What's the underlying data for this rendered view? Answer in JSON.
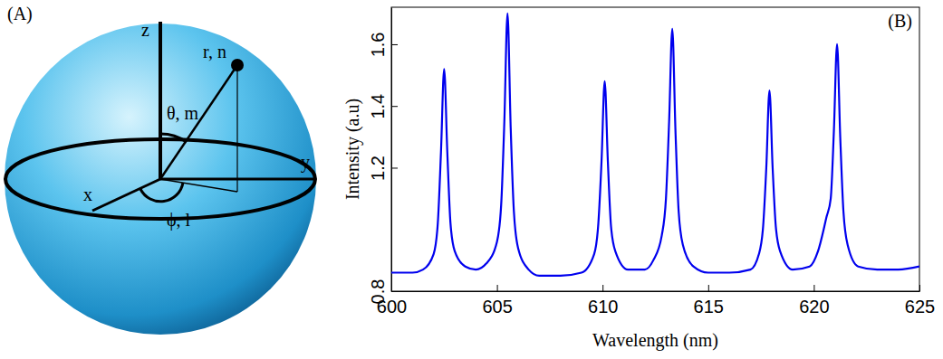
{
  "diagram": {
    "label": "(A)",
    "axes": [
      "x",
      "y",
      "z"
    ],
    "point_label": "r, n",
    "angle_labels": [
      "θ, m",
      "ϕ, l"
    ]
  },
  "chart_data": {
    "type": "line",
    "title": "(B)",
    "x_label": "Wavelength (nm)",
    "y_label": "Intensity (a.u)",
    "color": "#0000ee",
    "x": [
      600,
      601,
      601.5,
      602.0,
      602.2,
      602.35,
      602.5,
      602.65,
      602.8,
      603.0,
      603.5,
      604.0,
      604.5,
      605.0,
      605.2,
      605.35,
      605.5,
      605.65,
      605.8,
      606.0,
      606.5,
      607.0,
      608.0,
      609.0,
      609.6,
      609.8,
      609.95,
      610.1,
      610.25,
      610.4,
      610.6,
      611.2,
      612.0,
      612.4,
      612.8,
      613.0,
      613.15,
      613.3,
      613.45,
      613.6,
      613.8,
      614.3,
      615.0,
      616.0,
      617.0,
      617.4,
      617.6,
      617.75,
      617.9,
      618.05,
      618.2,
      618.4,
      619.0,
      619.8,
      620.2,
      620.6,
      620.8,
      620.95,
      621.1,
      621.25,
      621.4,
      621.6,
      622.1,
      623.0,
      624.0,
      625.0
    ],
    "values": [
      0.86,
      0.86,
      0.87,
      0.92,
      1.02,
      1.25,
      1.52,
      1.25,
      1.02,
      0.93,
      0.88,
      0.87,
      0.89,
      0.96,
      1.08,
      1.35,
      1.7,
      1.33,
      1.06,
      0.94,
      0.87,
      0.85,
      0.85,
      0.86,
      0.92,
      1.02,
      1.22,
      1.48,
      1.22,
      1.01,
      0.93,
      0.87,
      0.87,
      0.9,
      0.98,
      1.1,
      1.35,
      1.65,
      1.32,
      1.06,
      0.95,
      0.88,
      0.86,
      0.86,
      0.87,
      0.92,
      1.01,
      1.2,
      1.45,
      1.2,
      1.01,
      0.93,
      0.87,
      0.88,
      0.93,
      1.04,
      1.1,
      1.32,
      1.6,
      1.3,
      1.06,
      0.95,
      0.88,
      0.87,
      0.87,
      0.88
    ],
    "xlim": [
      600,
      625
    ],
    "xticks": [
      600,
      605,
      610,
      615,
      620,
      625
    ],
    "ylim": [
      0.8,
      1.72
    ],
    "yticks": [
      0.8,
      1.2,
      1.4,
      1.6
    ],
    "grid": false
  }
}
